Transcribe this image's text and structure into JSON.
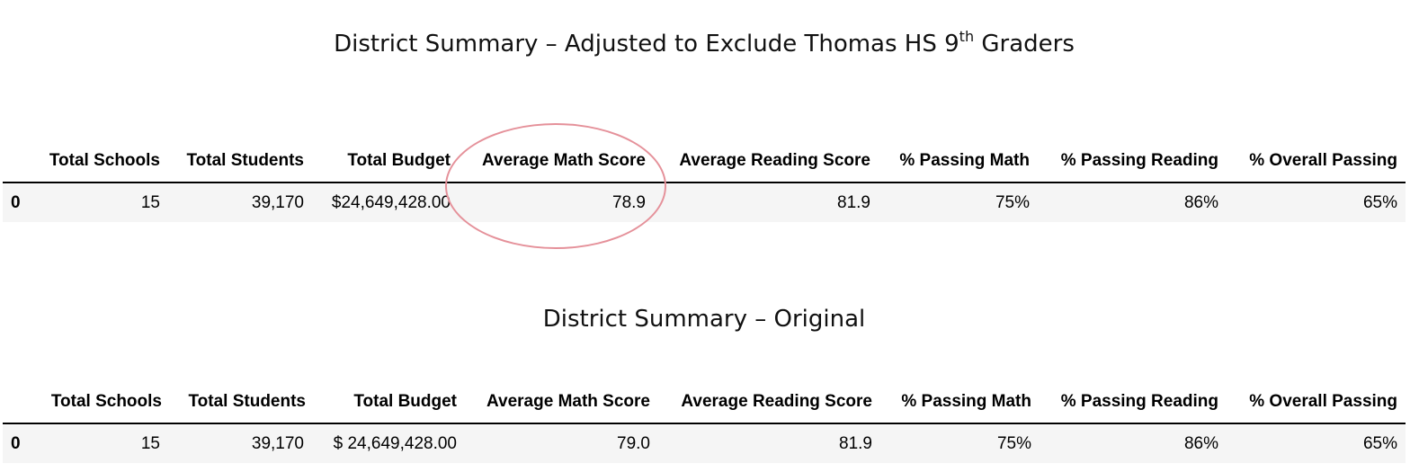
{
  "tables": [
    {
      "title_text": "District Summary – Adjusted to Exclude Thomas HS 9",
      "title_sup": "th",
      "title_suffix": " Graders",
      "headers": [
        "Total Schools",
        "Total Students",
        "Total Budget",
        "Average Math Score",
        "Average Reading Score",
        "% Passing Math",
        "% Passing Reading",
        "% Overall Passing"
      ],
      "row": {
        "index": "0",
        "values": [
          "15",
          "39,170",
          "$24,649,428.00",
          "78.9",
          "81.9",
          "75%",
          "86%",
          "65%"
        ]
      }
    },
    {
      "title_text": "District Summary – Original",
      "headers": [
        "Total Schools",
        "Total Students",
        "Total Budget",
        "Average Math Score",
        "Average Reading Score",
        "% Passing Math",
        "% Passing Reading",
        "% Overall Passing"
      ],
      "row": {
        "index": "0",
        "values": [
          "15",
          "39,170",
          "$ 24,649,428.00",
          "79.0",
          "81.9",
          "75%",
          "86%",
          "65%"
        ]
      }
    }
  ],
  "annotation": {
    "color": "#e5919a",
    "highlights": "Average Math Score"
  }
}
